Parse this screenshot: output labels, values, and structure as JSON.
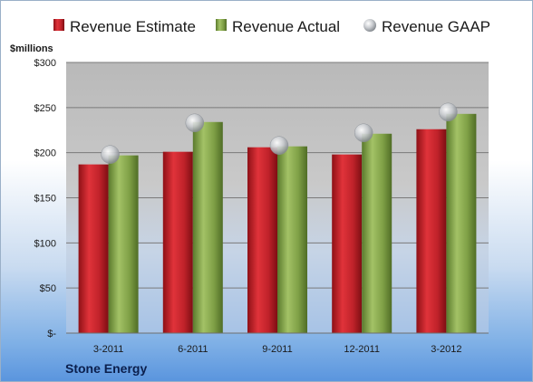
{
  "colors": {
    "estimate": "#c0222a",
    "actual": "#7fa046",
    "gaap": "#b8bcc2",
    "plot_bg": "#b8b8b8"
  },
  "company": "Stone Energy",
  "chart_data": {
    "type": "bar",
    "ylabel": "$millions",
    "ylim": [
      0,
      300
    ],
    "y_ticks": [
      0,
      50,
      100,
      150,
      200,
      250,
      300
    ],
    "y_tick_labels": [
      "$-",
      "$50",
      "$100",
      "$150",
      "$200",
      "$250",
      "$300"
    ],
    "categories": [
      "3-2011",
      "6-2011",
      "9-2011",
      "12-2011",
      "3-2012"
    ],
    "legend_position": "top",
    "grid": true,
    "series": [
      {
        "name": "Revenue Estimate",
        "type": "bar",
        "values": [
          187,
          201,
          206,
          198,
          226
        ]
      },
      {
        "name": "Revenue Actual",
        "type": "bar",
        "values": [
          197,
          234,
          207,
          221,
          243
        ]
      },
      {
        "name": "Revenue GAAP",
        "type": "point",
        "values": [
          198,
          233,
          208,
          222,
          245
        ]
      }
    ]
  }
}
